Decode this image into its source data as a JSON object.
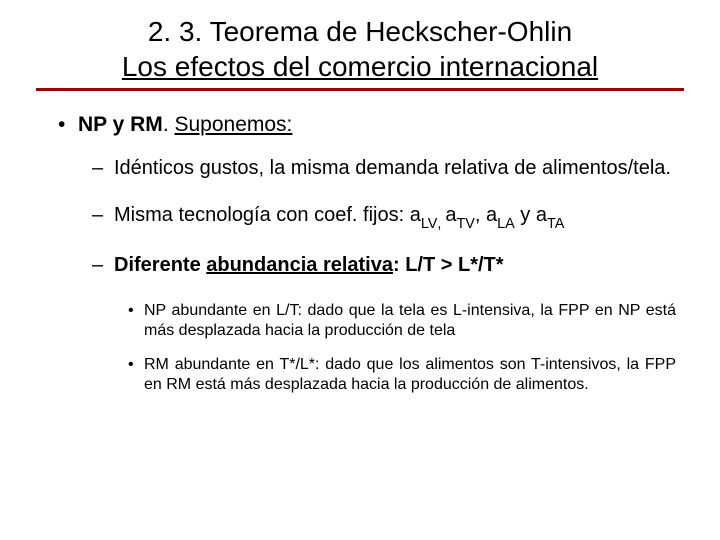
{
  "title": {
    "line1": "2. 3. Teorema de Heckscher-Ohlin",
    "line2": "Los efectos del comercio internacional"
  },
  "rule_color": "#a00000",
  "l1": {
    "prefix": "NP y RM",
    "label": "Suponemos:"
  },
  "l2a": "Idénticos gustos, la misma demanda relativa de alimentos/tela.",
  "l2b": {
    "lead": "Misma tecnología con coef. fijos: a",
    "s1": "LV",
    "c1": ", ",
    "a2": "a",
    "s2": "TV",
    "c2": ", a",
    "s3": "LA",
    "c3": " y a",
    "s4": "TA"
  },
  "l2c": {
    "lead": "Diferente ",
    "u": "abundancia relativa",
    "tail": ": L/T > L*/T*"
  },
  "l3a": "NP abundante en L/T: dado que la tela es L-intensiva, la FPP en NP está más desplazada hacia la producción de tela",
  "l3b": "RM abundante en T*/L*: dado que los alimentos son T-intensivos, la FPP en RM está más desplazada hacia la producción de alimentos."
}
